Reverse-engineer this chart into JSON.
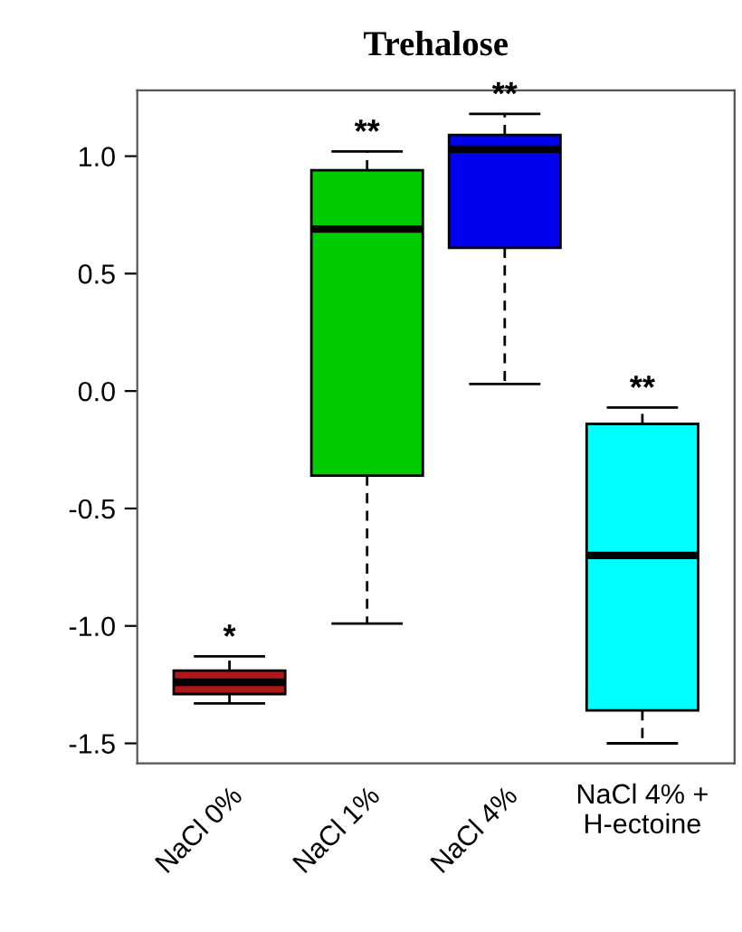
{
  "chart_data": {
    "type": "box",
    "title": "Trehalose",
    "categories": [
      "NaCl 0%",
      "NaCl 1%",
      "NaCl 4%",
      "NaCl 4% +\nH-ectoine"
    ],
    "colors": [
      "#b01818",
      "#00cc00",
      "#0000ee",
      "#00ffff"
    ],
    "boxes": [
      {
        "low": -1.33,
        "q1": -1.29,
        "median": -1.24,
        "q3": -1.19,
        "high": -1.13
      },
      {
        "low": -0.99,
        "q1": -0.36,
        "median": 0.69,
        "q3": 0.94,
        "high": 1.02
      },
      {
        "low": 0.03,
        "q1": 0.61,
        "median": 1.03,
        "q3": 1.09,
        "high": 1.18
      },
      {
        "low": -1.5,
        "q1": -1.36,
        "median": -0.7,
        "q3": -0.14,
        "high": -0.07
      }
    ],
    "annotations": [
      "*",
      "**",
      "**",
      "**"
    ],
    "ylim": [
      -1.585,
      1.28
    ],
    "yticks": [
      -1.5,
      {
        "value": -1,
        "label": "-1.0"
      },
      -0.5,
      {
        "value": 0,
        "label": "0.0"
      },
      0.5,
      {
        "value": 1,
        "label": "1.0"
      }
    ],
    "grid": false,
    "legend": false
  }
}
